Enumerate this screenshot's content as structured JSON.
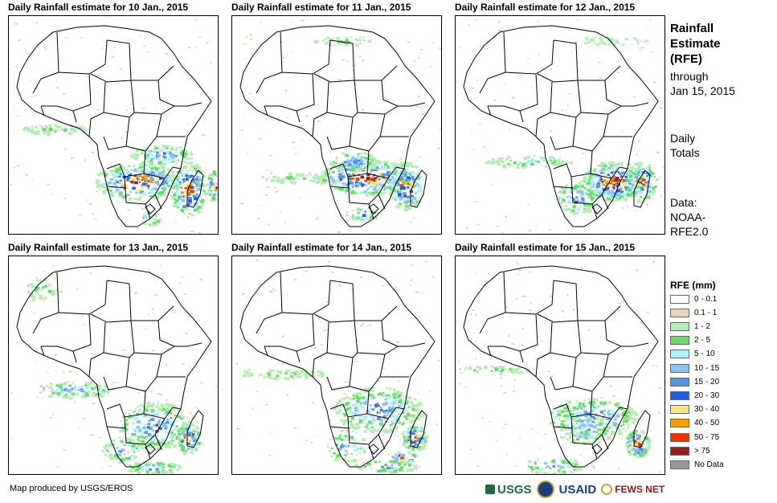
{
  "panels": [
    {
      "title": "Daily Rainfall estimate for 10 Jan., 2015"
    },
    {
      "title": "Daily Rainfall estimate for 11 Jan., 2015"
    },
    {
      "title": "Daily Rainfall estimate for 12 Jan., 2015"
    },
    {
      "title": "Daily Rainfall estimate for 13 Jan., 2015"
    },
    {
      "title": "Daily Rainfall estimate for 14 Jan., 2015"
    },
    {
      "title": "Daily Rainfall estimate for 15 Jan., 2015"
    }
  ],
  "side": {
    "heading_1": "Rainfall",
    "heading_2": "Estimate",
    "heading_3": "(RFE)",
    "through_1": "through",
    "through_2": "Jan 15, 2015",
    "totals_1": "Daily",
    "totals_2": "Totals",
    "data_1": "Data:",
    "data_2": "NOAA-",
    "data_3": "RFE2.0"
  },
  "legend": {
    "title": "RFE (mm)",
    "items": [
      {
        "label": "0 - 0.1",
        "color": "#ffffff"
      },
      {
        "label": "0.1 - 1",
        "color": "#e8d4b8"
      },
      {
        "label": "1 - 2",
        "color": "#b4eeb4"
      },
      {
        "label": "2 - 5",
        "color": "#66dd66"
      },
      {
        "label": "5 - 10",
        "color": "#b0f0f8"
      },
      {
        "label": "10 - 15",
        "color": "#8ec0f0"
      },
      {
        "label": "15 - 20",
        "color": "#4f98e8"
      },
      {
        "label": "20 - 30",
        "color": "#1e5fe0"
      },
      {
        "label": "30 - 40",
        "color": "#ffe680"
      },
      {
        "label": "40 - 50",
        "color": "#f5a000"
      },
      {
        "label": "50 - 75",
        "color": "#ee3300"
      },
      {
        "label": "> 75",
        "color": "#a01818"
      },
      {
        "label": "No Data",
        "color": "#9a9a9a"
      }
    ]
  },
  "credit": "Map produced by USGS/EROS",
  "logos": {
    "usgs": "USGS",
    "usaid": "USAID",
    "fews": "FEWS NET"
  }
}
